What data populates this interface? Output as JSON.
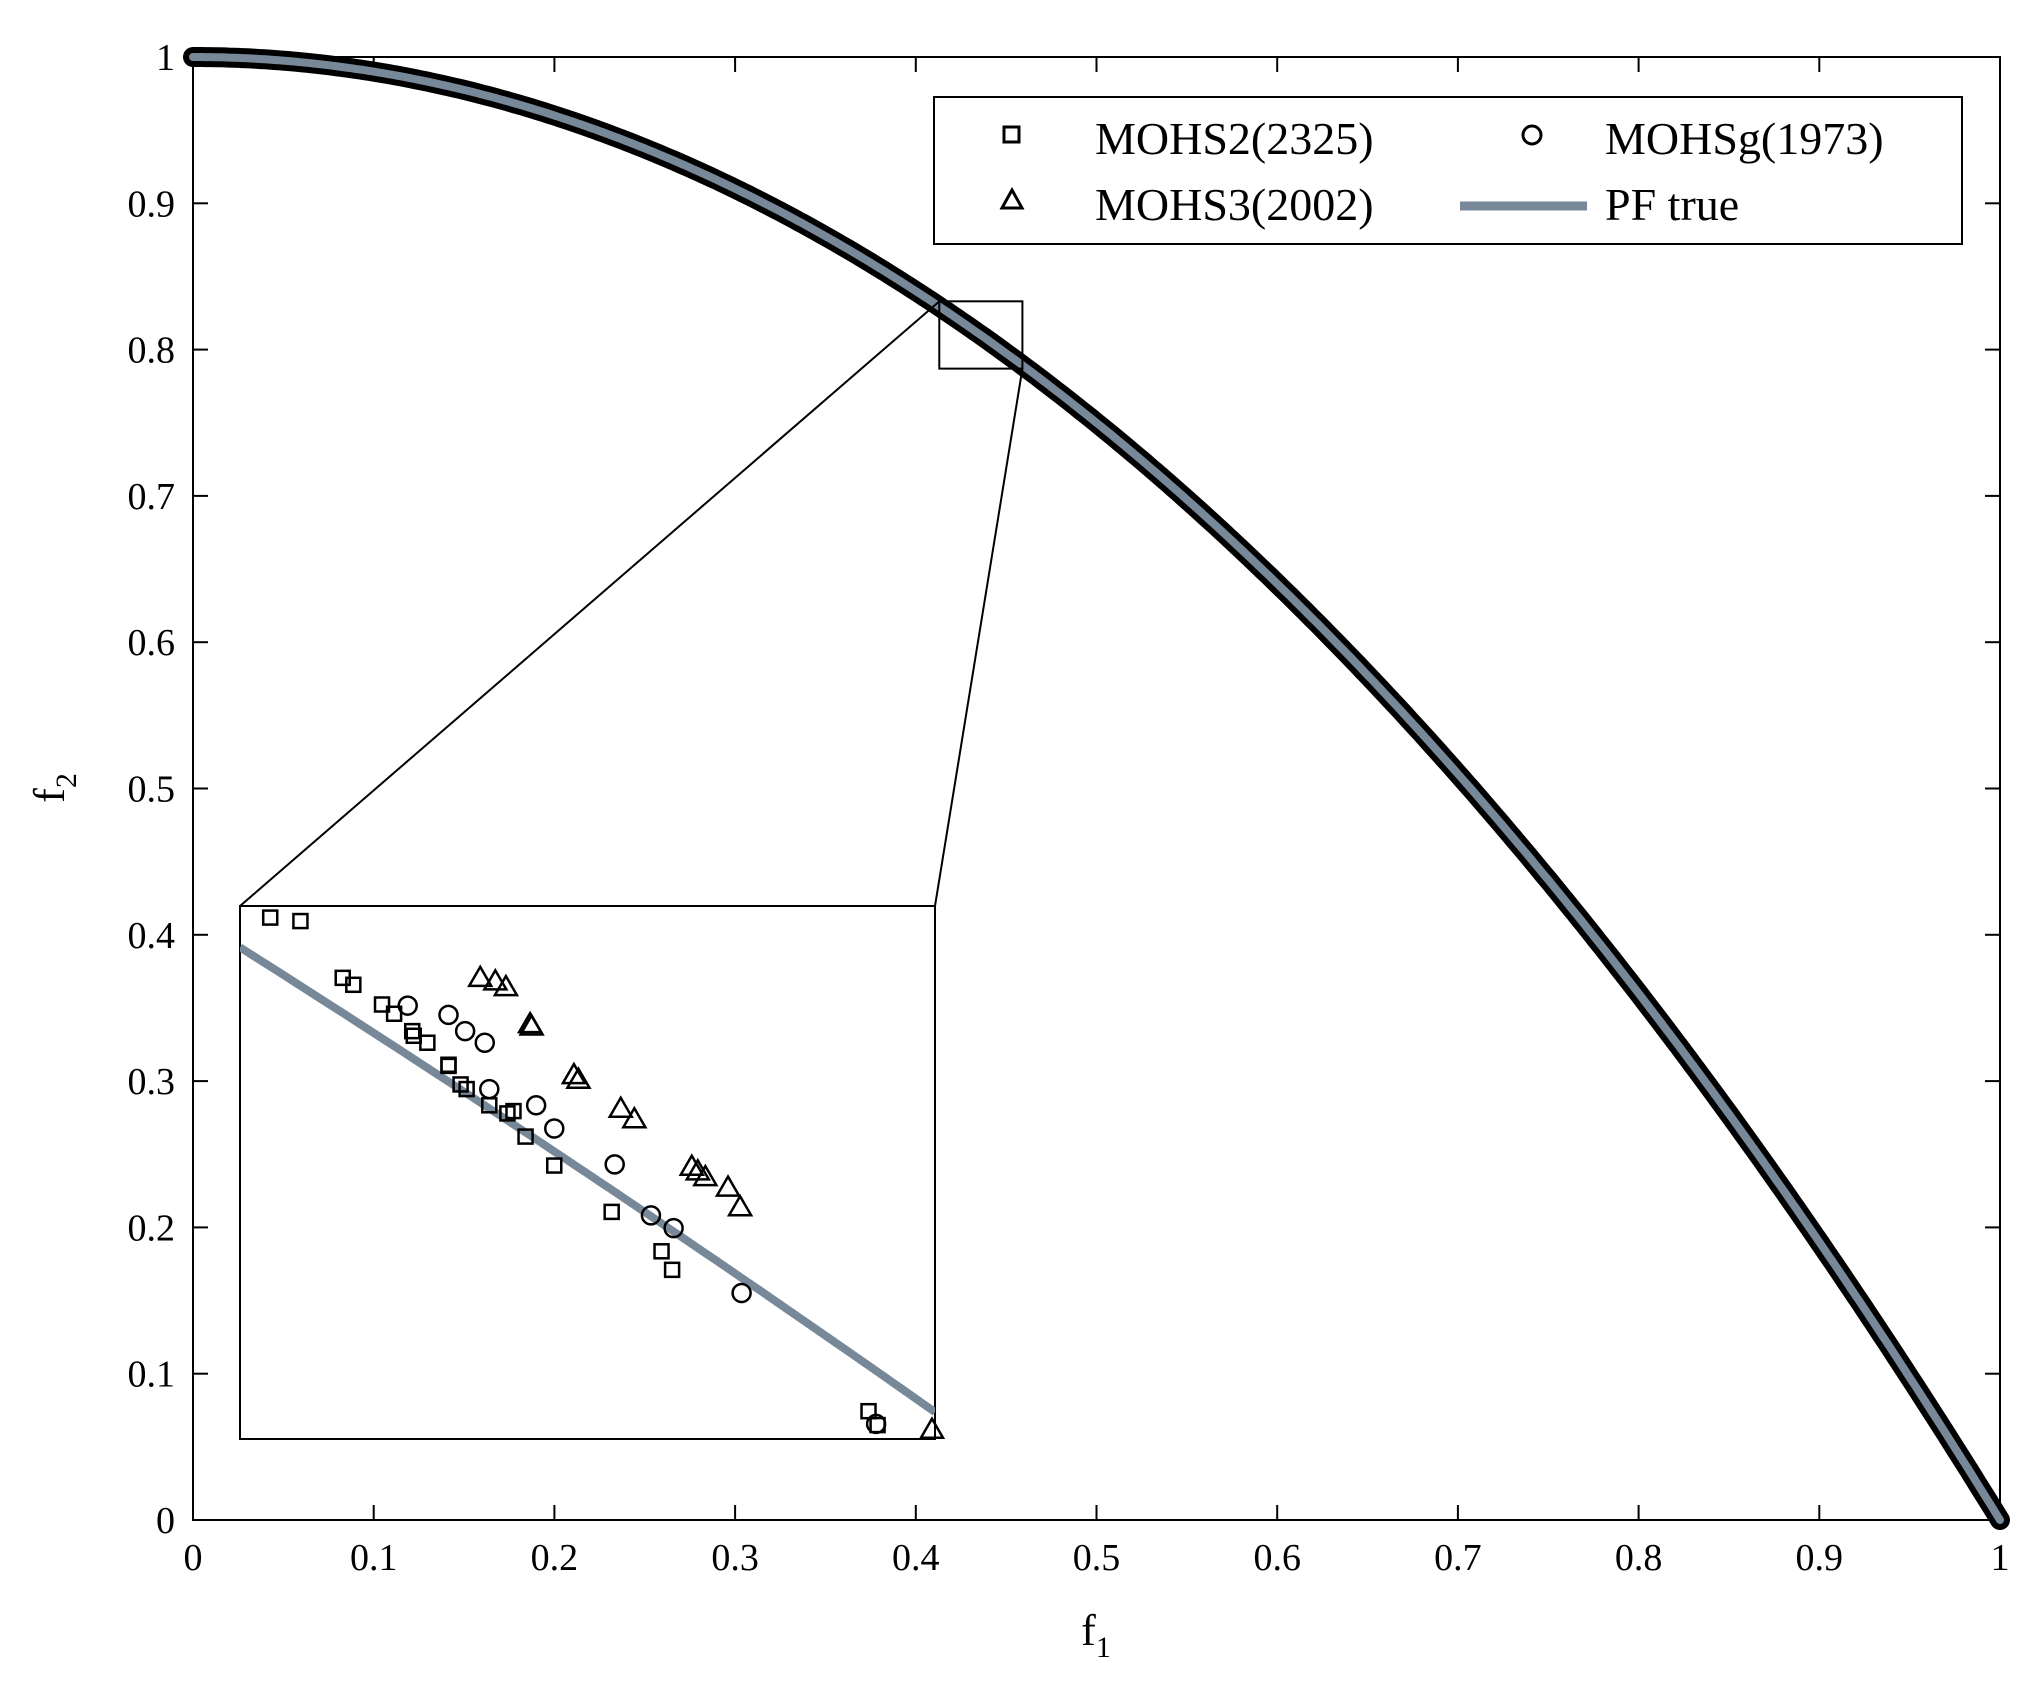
{
  "chart_data": {
    "type": "scatter",
    "title": "",
    "xlabel": "f",
    "xlabel_subscript": "1",
    "ylabel": "f",
    "ylabel_subscript": "2",
    "xlim": [
      0,
      1
    ],
    "ylim": [
      0,
      1
    ],
    "x_ticks": [
      "0",
      "0.1",
      "0.2",
      "0.3",
      "0.4",
      "0.5",
      "0.6",
      "0.7",
      "0.8",
      "0.9",
      "1"
    ],
    "y_ticks": [
      "0",
      "0.1",
      "0.2",
      "0.3",
      "0.4",
      "0.5",
      "0.6",
      "0.7",
      "0.8",
      "0.9",
      "1"
    ],
    "x_tick_values": [
      0,
      0.1,
      0.2,
      0.3,
      0.4,
      0.5,
      0.6,
      0.7,
      0.8,
      0.9,
      1
    ],
    "y_tick_values": [
      0,
      0.1,
      0.2,
      0.3,
      0.4,
      0.5,
      0.6,
      0.7,
      0.8,
      0.9,
      1
    ],
    "grid": false,
    "legend_position": "top-right",
    "true_front": {
      "name": "PF true",
      "equation": "f2 = 1 - f1^2",
      "color": "#778899"
    },
    "series": [
      {
        "name": "MOHS2(2325)",
        "marker": "square"
      },
      {
        "name": "MOHSg(1973)",
        "marker": "circle"
      },
      {
        "name": "MOHS3(2002)",
        "marker": "triangle"
      },
      {
        "name": "PF true",
        "marker": "line"
      }
    ],
    "zoom_region": {
      "x": [
        0.413,
        0.459
      ],
      "y": [
        0.787,
        0.833
      ]
    },
    "inset_points": {
      "MOHS2(2325)": [
        [
          0.415,
          0.832
        ],
        [
          0.417,
          0.8317
        ],
        [
          0.4198,
          0.8268
        ],
        [
          0.4205,
          0.8262
        ],
        [
          0.4224,
          0.8245
        ],
        [
          0.4232,
          0.8237
        ],
        [
          0.4244,
          0.8222
        ],
        [
          0.4245,
          0.8218
        ],
        [
          0.4254,
          0.8212
        ],
        [
          0.4268,
          0.8193
        ],
        [
          0.4276,
          0.8176
        ],
        [
          0.428,
          0.8172
        ],
        [
          0.4268,
          0.8192
        ],
        [
          0.4295,
          0.8158
        ],
        [
          0.4311,
          0.8153
        ],
        [
          0.4307,
          0.8151
        ],
        [
          0.4319,
          0.8131
        ],
        [
          0.4338,
          0.8106
        ],
        [
          0.4376,
          0.8066
        ],
        [
          0.4409,
          0.8032
        ],
        [
          0.4416,
          0.8016
        ],
        [
          0.4552,
          0.7882
        ],
        [
          0.4546,
          0.7894
        ]
      ],
      "MOHSg(1973)": [
        [
          0.4241,
          0.8244
        ],
        [
          0.4268,
          0.8236
        ],
        [
          0.4279,
          0.8222
        ],
        [
          0.4292,
          0.8212
        ],
        [
          0.4295,
          0.8172
        ],
        [
          0.4326,
          0.8158
        ],
        [
          0.4338,
          0.8138
        ],
        [
          0.4378,
          0.8107
        ],
        [
          0.4402,
          0.8063
        ],
        [
          0.4417,
          0.8052
        ],
        [
          0.4462,
          0.7996
        ],
        [
          0.4551,
          0.7883
        ]
      ],
      "MOHS3(2002)": [
        [
          0.4289,
          0.8268
        ],
        [
          0.4299,
          0.8265
        ],
        [
          0.4306,
          0.826
        ],
        [
          0.4322,
          0.8228
        ],
        [
          0.4323,
          0.8226
        ],
        [
          0.4351,
          0.8184
        ],
        [
          0.4354,
          0.818
        ],
        [
          0.4382,
          0.8155
        ],
        [
          0.4391,
          0.8146
        ],
        [
          0.4429,
          0.8105
        ],
        [
          0.4433,
          0.8101
        ],
        [
          0.4438,
          0.8096
        ],
        [
          0.4453,
          0.8087
        ],
        [
          0.4461,
          0.807
        ],
        [
          0.4588,
          0.7878
        ]
      ]
    }
  }
}
